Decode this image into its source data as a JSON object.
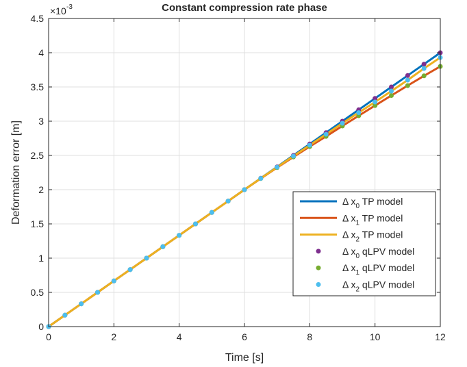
{
  "chart_data": {
    "type": "line",
    "title": "Constant compression rate phase",
    "xlabel": "Time [s]",
    "ylabel": "Deformation error [m]",
    "exponent_label": "×10",
    "exponent_power": "-3",
    "xlim": [
      0,
      12
    ],
    "ylim": [
      0,
      4.5
    ],
    "xticks": [
      "0",
      "2",
      "4",
      "6",
      "8",
      "10",
      "12"
    ],
    "yticks": [
      "0",
      "0.5",
      "1",
      "1.5",
      "2",
      "2.5",
      "3",
      "3.5",
      "4",
      "4.5"
    ],
    "grid": true,
    "legend_position": "lower-right",
    "x": [
      0,
      0.5,
      1,
      1.5,
      2,
      2.5,
      3,
      3.5,
      4,
      4.5,
      5,
      5.5,
      6,
      6.5,
      7,
      7.5,
      8,
      8.5,
      9,
      9.5,
      10,
      10.5,
      11,
      11.5,
      12
    ],
    "series": [
      {
        "name": "Δ x",
        "sub": "0",
        "suffix": " TP model",
        "style": "line",
        "color": "#0072BD",
        "values": [
          0.0,
          0.167,
          0.333,
          0.5,
          0.667,
          0.833,
          1.0,
          1.167,
          1.333,
          1.5,
          1.667,
          1.833,
          2.0,
          2.167,
          2.333,
          2.5,
          2.667,
          2.833,
          3.0,
          3.167,
          3.333,
          3.5,
          3.667,
          3.833,
          4.0
        ]
      },
      {
        "name": "Δ x",
        "sub": "1",
        "suffix": " TP model",
        "style": "line",
        "color": "#D95319",
        "values": [
          0.0,
          0.167,
          0.333,
          0.5,
          0.667,
          0.833,
          1.0,
          1.167,
          1.333,
          1.5,
          1.667,
          1.833,
          2.0,
          2.163,
          2.322,
          2.478,
          2.63,
          2.778,
          2.93,
          3.08,
          3.228,
          3.375,
          3.52,
          3.662,
          3.8
        ]
      },
      {
        "name": "Δ x",
        "sub": "2",
        "suffix": " TP model",
        "style": "line",
        "color": "#EDB120",
        "values": [
          0.0,
          0.167,
          0.333,
          0.5,
          0.667,
          0.833,
          1.0,
          1.167,
          1.333,
          1.5,
          1.667,
          1.833,
          2.0,
          2.165,
          2.328,
          2.49,
          2.65,
          2.81,
          2.97,
          3.125,
          3.28,
          3.44,
          3.6,
          3.77,
          3.93
        ]
      },
      {
        "name": "Δ x",
        "sub": "0",
        "suffix": " qLPV model",
        "style": "marker",
        "color": "#7E2F8E",
        "values": [
          0.0,
          0.167,
          0.333,
          0.5,
          0.667,
          0.833,
          1.0,
          1.167,
          1.333,
          1.5,
          1.667,
          1.833,
          2.0,
          2.167,
          2.333,
          2.5,
          2.667,
          2.833,
          3.0,
          3.167,
          3.333,
          3.5,
          3.667,
          3.833,
          4.0
        ]
      },
      {
        "name": "Δ x",
        "sub": "1",
        "suffix": " qLPV model",
        "style": "marker",
        "color": "#77AC30",
        "values": [
          0.0,
          0.167,
          0.333,
          0.5,
          0.667,
          0.833,
          1.0,
          1.167,
          1.333,
          1.5,
          1.667,
          1.833,
          2.0,
          2.163,
          2.322,
          2.478,
          2.63,
          2.778,
          2.93,
          3.08,
          3.228,
          3.375,
          3.52,
          3.662,
          3.8
        ]
      },
      {
        "name": "Δ x",
        "sub": "2",
        "suffix": " qLPV model",
        "style": "marker",
        "color": "#4DBEEE",
        "values": [
          0.0,
          0.167,
          0.333,
          0.5,
          0.667,
          0.833,
          1.0,
          1.167,
          1.333,
          1.5,
          1.667,
          1.833,
          2.0,
          2.165,
          2.328,
          2.49,
          2.65,
          2.81,
          2.97,
          3.125,
          3.28,
          3.44,
          3.6,
          3.77,
          3.93
        ]
      }
    ]
  }
}
